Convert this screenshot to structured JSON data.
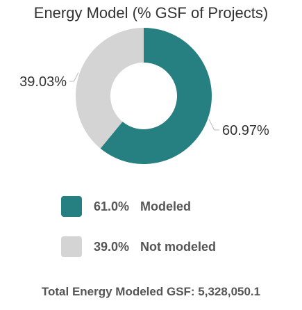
{
  "chart_data": {
    "type": "pie",
    "donut": true,
    "title": "Energy Model (% GSF of Projects)",
    "slices": [
      {
        "label": "Modeled",
        "value": 60.97,
        "display_label": "60.97%",
        "color": "#267F81"
      },
      {
        "label": "Not modeled",
        "value": 39.03,
        "display_label": "39.03%",
        "color": "#D4D4D4"
      }
    ],
    "legend": {
      "placement": "below",
      "items": [
        {
          "percent": "61.0%",
          "name": "Modeled",
          "color": "#267F81"
        },
        {
          "percent": "39.0%",
          "name": "Not modeled",
          "color": "#D4D4D4"
        }
      ]
    }
  },
  "footer": {
    "total_text": "Total Energy Modeled GSF: 5,328,050.1"
  }
}
